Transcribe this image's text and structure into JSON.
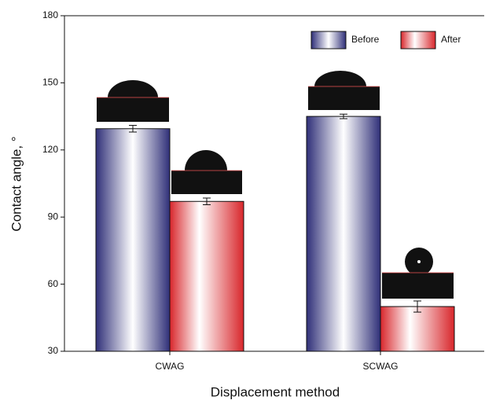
{
  "chart_data": {
    "type": "bar",
    "xlabel": "Displacement method",
    "ylabel": "Contact angle, °",
    "categories": [
      "CWAG",
      "SCWAG"
    ],
    "series": [
      {
        "name": "Before",
        "color": "#2f2f78",
        "values": [
          129.5,
          135
        ],
        "errors": [
          1.5,
          1
        ]
      },
      {
        "name": "After",
        "color": "#d8262b",
        "values": [
          97,
          50
        ],
        "errors": [
          1.5,
          2.5
        ]
      }
    ],
    "ylim": [
      30,
      180
    ],
    "yticks": [
      30,
      60,
      90,
      120,
      150,
      180
    ],
    "legend": "top-right"
  }
}
